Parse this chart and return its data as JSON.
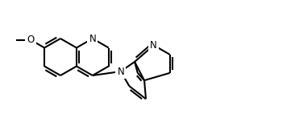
{
  "bg_color": "#ffffff",
  "line_color": "#000000",
  "line_width": 1.5,
  "font_size": 8,
  "bond_color": "#000000",
  "atoms": {
    "N_label": "N",
    "N2_label": "N",
    "O_label": "O",
    "OMe_label": "O"
  },
  "figsize": [
    3.66,
    1.42
  ],
  "dpi": 100
}
